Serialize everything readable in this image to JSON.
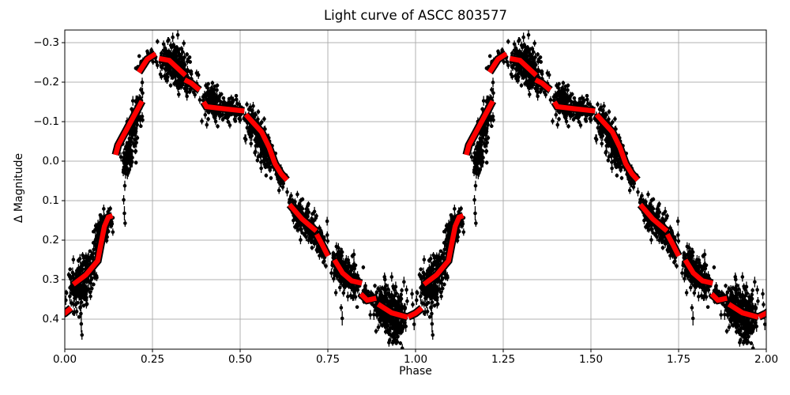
{
  "chart_data": {
    "type": "scatter",
    "title": "Light curve of ASCC 803577",
    "xlabel": "Phase",
    "ylabel": "Δ Magnitude",
    "xlim": [
      0,
      2
    ],
    "ylim": [
      0.476,
      -0.332
    ],
    "y_axis_inverted": true,
    "grid": true,
    "x_ticks": [
      0,
      0.25,
      0.5,
      0.75,
      1.0,
      1.25,
      1.5,
      1.75,
      2.0
    ],
    "x_tick_labels": [
      "0.00",
      "0.25",
      "0.50",
      "0.75",
      "1.00",
      "1.25",
      "1.50",
      "1.75",
      "2.00"
    ],
    "y_ticks": [
      -0.3,
      -0.2,
      -0.1,
      0.0,
      0.1,
      0.2,
      0.3,
      0.4
    ],
    "y_tick_labels": [
      "−0.3",
      "−0.2",
      "−0.1",
      "0.0",
      "0.1",
      "0.2",
      "0.3",
      "0.4"
    ],
    "colors": {
      "points": "#000000",
      "binned_curve": "#ff0000",
      "binned_curve_edge": "#000000",
      "grid": "#b0b0b0",
      "spine": "#000000"
    },
    "phase_duplication_offsets": [
      -1,
      0,
      1
    ],
    "binned_curve_segments": [
      [
        [
          0.024,
          0.312
        ],
        [
          0.06,
          0.288
        ],
        [
          0.094,
          0.252
        ],
        [
          0.103,
          0.21
        ],
        [
          0.113,
          0.165
        ],
        [
          0.124,
          0.142
        ],
        [
          0.136,
          0.138
        ]
      ],
      [
        [
          0.145,
          -0.016
        ],
        [
          0.152,
          -0.04
        ],
        [
          0.22,
          -0.152
        ]
      ],
      [
        [
          0.211,
          -0.225
        ],
        [
          0.235,
          -0.258
        ],
        [
          0.259,
          -0.272
        ]
      ],
      [
        [
          0.269,
          -0.26
        ],
        [
          0.298,
          -0.255
        ],
        [
          0.344,
          -0.217
        ]
      ],
      [
        [
          0.342,
          -0.206
        ],
        [
          0.36,
          -0.198
        ],
        [
          0.384,
          -0.18
        ]
      ],
      [
        [
          0.396,
          -0.15
        ],
        [
          0.404,
          -0.138
        ],
        [
          0.45,
          -0.133
        ],
        [
          0.512,
          -0.127
        ]
      ],
      [
        [
          0.516,
          -0.118
        ],
        [
          0.561,
          -0.074
        ],
        [
          0.583,
          -0.034
        ],
        [
          0.599,
          0.006
        ],
        [
          0.617,
          0.032
        ],
        [
          0.633,
          0.048
        ]
      ],
      [
        [
          0.641,
          0.11
        ],
        [
          0.676,
          0.146
        ],
        [
          0.717,
          0.177
        ]
      ],
      [
        [
          0.718,
          0.185
        ],
        [
          0.733,
          0.21
        ],
        [
          0.75,
          0.24
        ]
      ],
      [
        [
          0.769,
          0.25
        ],
        [
          0.792,
          0.283
        ],
        [
          0.818,
          0.303
        ],
        [
          0.847,
          0.309
        ]
      ],
      [
        [
          0.844,
          0.336
        ],
        [
          0.862,
          0.352
        ],
        [
          0.888,
          0.347
        ]
      ],
      [
        [
          0.893,
          0.362
        ],
        [
          0.932,
          0.384
        ],
        [
          0.977,
          0.395
        ]
      ],
      [
        [
          0.979,
          0.394
        ],
        [
          1.0,
          0.385
        ],
        [
          1.018,
          0.372
        ]
      ]
    ],
    "scatter_clusters": [
      {
        "path": [
          [
            0.02,
            0.337
          ],
          [
            0.05,
            0.306
          ],
          [
            0.082,
            0.262
          ]
        ],
        "sx": 0.009,
        "sy": 0.028,
        "n": 210,
        "eb": 0.009
      },
      {
        "path": [
          [
            0.091,
            0.205
          ],
          [
            0.108,
            0.168
          ],
          [
            0.129,
            0.143
          ]
        ],
        "sx": 0.0065,
        "sy": 0.02,
        "n": 120,
        "eb": 0.008
      },
      {
        "path": [
          [
            0.168,
            0.032
          ],
          [
            0.19,
            -0.058
          ],
          [
            0.214,
            -0.148
          ]
        ],
        "sx": 0.0055,
        "sy": 0.027,
        "n": 170,
        "eb": 0.009
      },
      {
        "path": [
          [
            0.216,
            -0.236
          ],
          [
            0.25,
            -0.266
          ]
        ],
        "sx": 0.007,
        "sy": 0.011,
        "n": 26,
        "eb": 0.006
      },
      {
        "path": [
          [
            0.283,
            -0.256
          ],
          [
            0.313,
            -0.247
          ],
          [
            0.343,
            -0.221
          ]
        ],
        "sx": 0.011,
        "sy": 0.023,
        "n": 260,
        "eb": 0.008
      },
      {
        "path": [
          [
            0.346,
            -0.198
          ],
          [
            0.379,
            -0.184
          ]
        ],
        "sx": 0.008,
        "sy": 0.012,
        "n": 34,
        "eb": 0.007
      },
      {
        "path": [
          [
            0.405,
            -0.147
          ],
          [
            0.438,
            -0.139
          ]
        ],
        "sx": 0.009,
        "sy": 0.022,
        "n": 150,
        "eb": 0.008
      },
      {
        "path": [
          [
            0.459,
            -0.133
          ],
          [
            0.504,
            -0.127
          ]
        ],
        "sx": 0.011,
        "sy": 0.015,
        "n": 55,
        "eb": 0.007
      },
      {
        "path": [
          [
            0.525,
            -0.106
          ],
          [
            0.553,
            -0.064
          ],
          [
            0.577,
            -0.022
          ],
          [
            0.594,
            0.001
          ]
        ],
        "sx": 0.0065,
        "sy": 0.025,
        "n": 190,
        "eb": 0.009
      },
      {
        "path": [
          [
            0.601,
            0.023
          ],
          [
            0.624,
            0.058
          ]
        ],
        "sx": 0.005,
        "sy": 0.016,
        "n": 28,
        "eb": 0.008
      },
      {
        "path": [
          [
            0.651,
            0.122
          ],
          [
            0.682,
            0.148
          ],
          [
            0.713,
            0.176
          ]
        ],
        "sx": 0.009,
        "sy": 0.019,
        "n": 150,
        "eb": 0.008
      },
      {
        "path": [
          [
            0.722,
            0.199
          ],
          [
            0.744,
            0.227
          ]
        ],
        "sx": 0.0055,
        "sy": 0.019,
        "n": 60,
        "eb": 0.008
      },
      {
        "path": [
          [
            0.771,
            0.251
          ],
          [
            0.802,
            0.289
          ],
          [
            0.834,
            0.308
          ]
        ],
        "sx": 0.01,
        "sy": 0.023,
        "n": 210,
        "eb": 0.009
      },
      {
        "path": [
          [
            0.849,
            0.335
          ],
          [
            0.884,
            0.349
          ]
        ],
        "sx": 0.008,
        "sy": 0.013,
        "n": 30,
        "eb": 0.007
      },
      {
        "path": [
          [
            0.897,
            0.359
          ],
          [
            0.927,
            0.386
          ],
          [
            0.961,
            0.393
          ]
        ],
        "sx": 0.012,
        "sy": 0.029,
        "n": 290,
        "eb": 0.01
      },
      {
        "path": [
          [
            0.932,
            0.441
          ],
          [
            0.951,
            0.452
          ]
        ],
        "sx": 0.006,
        "sy": 0.012,
        "n": 18,
        "eb": 0.009
      }
    ],
    "outlier_points": [
      [
        0.003,
        0.352,
        0.012
      ],
      [
        0.046,
        0.386,
        0.01
      ],
      [
        0.047,
        0.412,
        0.022
      ],
      [
        0.049,
        0.44,
        0.012
      ],
      [
        0.168,
        0.098,
        0.012
      ],
      [
        0.17,
        0.132,
        0.018
      ],
      [
        0.172,
        0.157,
        0.009
      ],
      [
        0.296,
        -0.307,
        0.007
      ],
      [
        0.634,
        0.078,
        0.011
      ],
      [
        0.641,
        0.097,
        0.009
      ],
      [
        0.748,
        0.152,
        0.011
      ],
      [
        0.788,
        0.371,
        0.009
      ],
      [
        0.791,
        0.398,
        0.018
      ],
      [
        0.871,
        0.389,
        0.012
      ],
      [
        0.932,
        0.293,
        0.012
      ],
      [
        0.936,
        0.317,
        0.008
      ],
      [
        0.94,
        0.341,
        0.011
      ],
      [
        0.99,
        0.336,
        0.013
      ],
      [
        0.992,
        0.363,
        0.008
      ],
      [
        0.994,
        0.389,
        0.011
      ],
      [
        0.996,
        0.413,
        0.015
      ]
    ]
  }
}
